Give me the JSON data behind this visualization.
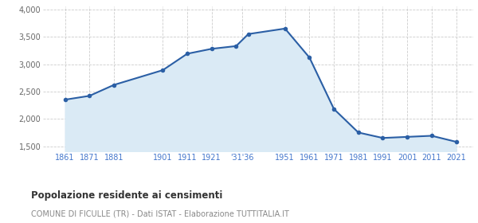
{
  "years": [
    1861,
    1871,
    1881,
    1901,
    1911,
    1921,
    1931,
    1936,
    1951,
    1961,
    1971,
    1981,
    1991,
    2001,
    2011,
    2021
  ],
  "population": [
    2350,
    2420,
    2620,
    2890,
    3190,
    3280,
    3330,
    3550,
    3650,
    3120,
    2180,
    1750,
    1650,
    1670,
    1690,
    1580
  ],
  "x_tick_positions": [
    1861,
    1871,
    1881,
    1901,
    1911,
    1921,
    1933.5,
    1951,
    1961,
    1971,
    1981,
    1991,
    2001,
    2011,
    2021
  ],
  "x_tick_labels": [
    "1861",
    "1871",
    "1881",
    "1901",
    "1911",
    "1921",
    "'31'36",
    "1951",
    "1961",
    "1971",
    "1981",
    "1991",
    "2001",
    "2011",
    "2021"
  ],
  "ylim": [
    1400,
    4050
  ],
  "yticks": [
    1500,
    2000,
    2500,
    3000,
    3500,
    4000
  ],
  "ytick_labels": [
    "1,500",
    "2,000",
    "2,500",
    "3,000",
    "3,500",
    "4,000"
  ],
  "fill_baseline": 1400,
  "line_color": "#2b5fa5",
  "fill_color": "#daeaf5",
  "marker_color": "#2b5fa5",
  "bg_color": "#ffffff",
  "grid_color": "#cccccc",
  "title": "Popolazione residente ai censimenti",
  "subtitle": "COMUNE DI FICULLE (TR) - Dati ISTAT - Elaborazione TUTTITALIA.IT",
  "title_color": "#333333",
  "subtitle_color": "#888888",
  "tick_color": "#4477cc",
  "ytick_color": "#666666",
  "xlim_left": 1852,
  "xlim_right": 2028
}
